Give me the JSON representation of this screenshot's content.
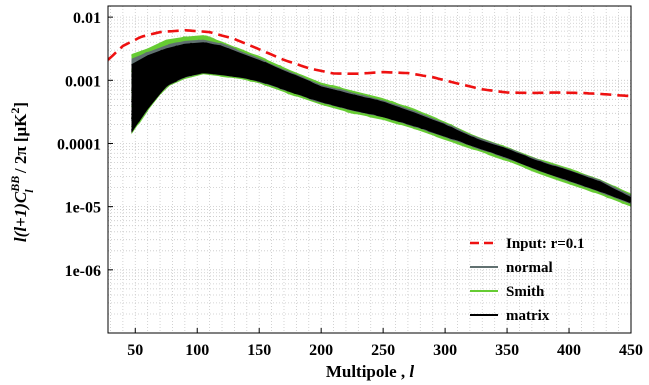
{
  "chart_data": {
    "type": "line",
    "xlabel": "Multipole , ",
    "xlabel_var": "l",
    "ylabel_prefix": "l(l+1)C",
    "ylabel_sup": "BB",
    "ylabel_sub": "l",
    "ylabel_suffix": " / 2π [μK",
    "ylabel_unit_sup": "2",
    "ylabel_close": "]",
    "xlim": [
      28,
      450
    ],
    "ylim": [
      1e-07,
      0.015
    ],
    "yscale": "log",
    "xticks": [
      50,
      100,
      150,
      200,
      250,
      300,
      350,
      400,
      450
    ],
    "xtick_labels": [
      "50",
      "100",
      "150",
      "200",
      "250",
      "300",
      "350",
      "400",
      "450"
    ],
    "yticks": [
      1e-06,
      1e-05,
      0.0001,
      0.001,
      0.01
    ],
    "ytick_labels": [
      "1e-06",
      "1e-05",
      "0.0001",
      "0.001",
      "0.01"
    ],
    "grid": true,
    "legend_position": "bottom-right",
    "series": [
      {
        "name": "Input: r=0.1",
        "color": "#ee1111",
        "style": "dashed",
        "x": [
          28,
          40,
          55,
          70,
          90,
          110,
          130,
          150,
          170,
          190,
          210,
          230,
          250,
          270,
          290,
          310,
          330,
          350,
          370,
          390,
          410,
          430,
          450
        ],
        "y": [
          0.0021,
          0.0035,
          0.0049,
          0.0058,
          0.0062,
          0.0058,
          0.0045,
          0.0031,
          0.0021,
          0.00155,
          0.00128,
          0.00127,
          0.00135,
          0.0013,
          0.00112,
          0.00089,
          0.00072,
          0.00064,
          0.00063,
          0.00064,
          0.00063,
          0.0006,
          0.00056
        ]
      },
      {
        "name": "normal",
        "color": "#607070",
        "style": "solid",
        "x": [
          47,
          60,
          75,
          90,
          105,
          120,
          135,
          150,
          175,
          200,
          225,
          250,
          275,
          300,
          325,
          350,
          375,
          400,
          425,
          450
        ],
        "upper": [
          0.0022,
          0.0028,
          0.0036,
          0.0042,
          0.0044,
          0.0038,
          0.0029,
          0.0022,
          0.00135,
          0.00085,
          0.00064,
          0.00048,
          0.00033,
          0.00021,
          0.000125,
          8.5e-05,
          5.5e-05,
          3.8e-05,
          2.6e-05,
          1.5e-05
        ],
        "lower": [
          0.00015,
          0.00035,
          0.0008,
          0.0011,
          0.0013,
          0.0012,
          0.0011,
          0.00095,
          0.00065,
          0.00044,
          0.00033,
          0.00026,
          0.000185,
          0.000125,
          8.5e-05,
          5.8e-05,
          3.7e-05,
          2.5e-05,
          1.7e-05,
          1.1e-05
        ]
      },
      {
        "name": "Smith",
        "color": "#66cc33",
        "style": "solid",
        "x": [
          47,
          60,
          75,
          90,
          105,
          120,
          135,
          150,
          175,
          200,
          225,
          250,
          275,
          300,
          325,
          350,
          375,
          400,
          425,
          450
        ],
        "upper": [
          0.0026,
          0.0032,
          0.0044,
          0.0049,
          0.0052,
          0.0041,
          0.0031,
          0.0024,
          0.00145,
          0.00092,
          0.00069,
          0.00052,
          0.00035,
          0.00022,
          0.00013,
          8.8e-05,
          5.7e-05,
          4e-05,
          2.7e-05,
          1.6e-05
        ],
        "lower": [
          0.00014,
          0.00033,
          0.00078,
          0.00105,
          0.00125,
          0.00115,
          0.00105,
          0.0009,
          0.0006,
          0.00041,
          0.0003,
          0.00024,
          0.00017,
          0.000115,
          7.8e-05,
          5.3e-05,
          3.4e-05,
          2.3e-05,
          1.55e-05,
          1e-05
        ]
      },
      {
        "name": "matrix",
        "color": "#000000",
        "style": "solid",
        "x": [
          47,
          60,
          75,
          90,
          105,
          120,
          135,
          150,
          175,
          200,
          225,
          250,
          275,
          300,
          325,
          350,
          375,
          400,
          425,
          450
        ],
        "upper": [
          0.0018,
          0.0025,
          0.0032,
          0.0038,
          0.004,
          0.0035,
          0.0027,
          0.0021,
          0.0013,
          0.0008,
          0.0006,
          0.00046,
          0.00031,
          0.0002,
          0.00012,
          8.2e-05,
          5.3e-05,
          3.7e-05,
          2.5e-05,
          1.4e-05
        ],
        "lower": [
          0.00015,
          0.00036,
          0.00082,
          0.00112,
          0.00132,
          0.00122,
          0.00112,
          0.00097,
          0.00066,
          0.00045,
          0.00034,
          0.000265,
          0.00019,
          0.00013,
          8.8e-05,
          6e-05,
          3.8e-05,
          2.6e-05,
          1.75e-05,
          1.15e-05
        ]
      }
    ]
  }
}
